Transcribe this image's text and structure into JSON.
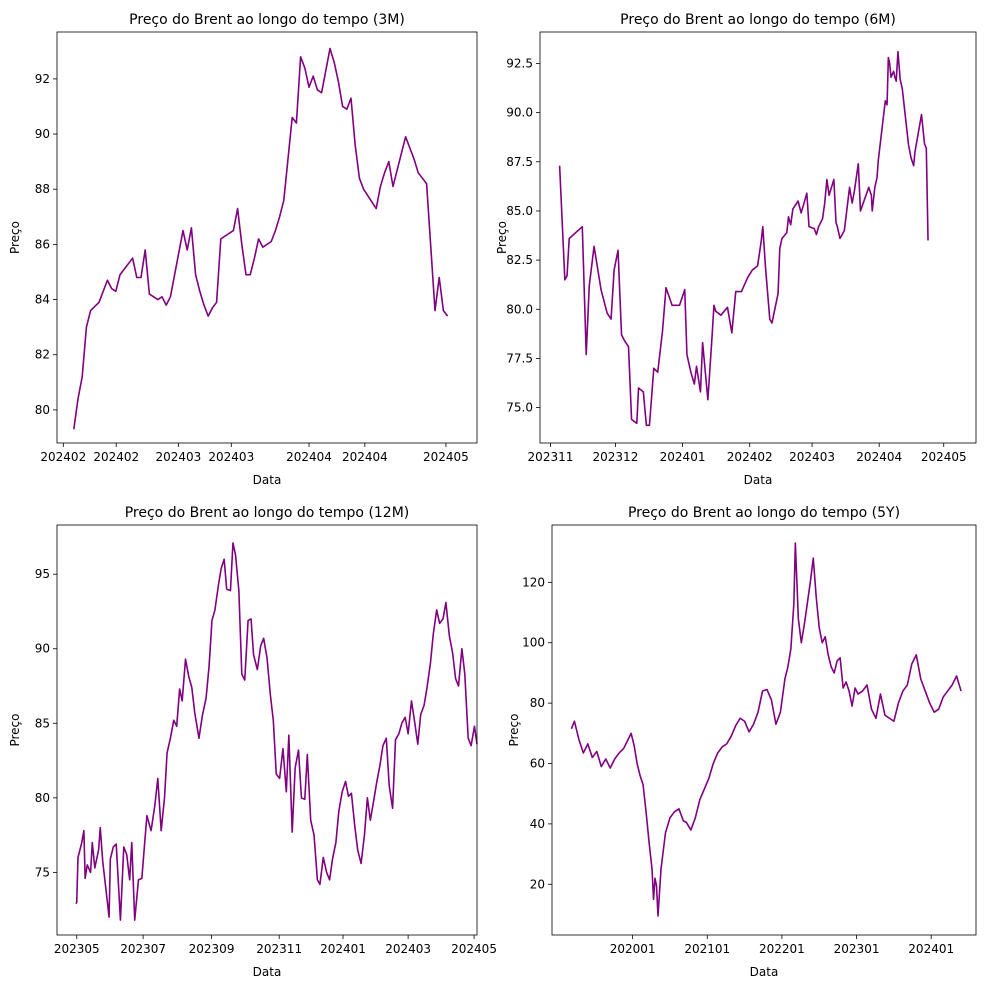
{
  "line_color": "#800080",
  "chart_data": [
    {
      "type": "line",
      "title": "Preço do Brent ao longo do tempo (3M)",
      "xlabel": "Data",
      "ylabel": "Preço",
      "xlim": [
        0,
        100
      ],
      "ylim": [
        78.8,
        93.7
      ],
      "xticks": [
        {
          "pos": 1.5,
          "label": "202402"
        },
        {
          "pos": 14.1,
          "label": "202402"
        },
        {
          "pos": 28.9,
          "label": "202403"
        },
        {
          "pos": 41.5,
          "label": "202403"
        },
        {
          "pos": 60.0,
          "label": "202404"
        },
        {
          "pos": 73.3,
          "label": "202404"
        },
        {
          "pos": 92.6,
          "label": "202405"
        }
      ],
      "yticks": [
        80,
        82,
        84,
        86,
        88,
        90,
        92
      ],
      "grid": false,
      "series": [
        {
          "x": [
            4.0,
            5.0,
            6.0,
            7.0,
            8.0,
            10.0,
            12.0,
            13.0,
            14.0,
            15.0,
            18.0,
            19.0,
            20.0,
            21.0,
            22.0,
            23.0,
            24.0,
            25.0,
            26.0,
            27.0,
            30.0,
            31.0,
            32.0,
            33.0,
            34.0,
            35.0,
            36.0,
            37.0,
            38.0,
            39.0,
            42.0,
            43.0,
            44.0,
            45.0,
            46.0,
            47.0,
            48.0,
            49.0,
            51.0,
            52.0,
            53.0,
            54.0,
            56.0,
            57.0,
            58.0,
            59.0,
            60.0,
            61.0,
            62.0,
            63.0,
            65.0,
            66.0,
            67.0,
            68.0,
            69.0,
            70.0,
            71.0,
            72.0,
            73.0,
            76.0,
            77.0,
            78.0,
            79.0,
            80.0,
            83.0,
            84.0,
            85.0,
            86.0,
            87.0,
            88.0,
            90.0,
            91.0,
            92.0,
            93.0
          ],
          "y": [
            79.3,
            80.4,
            81.2,
            83.0,
            83.6,
            83.9,
            84.7,
            84.4,
            84.3,
            84.9,
            85.5,
            84.8,
            84.8,
            85.8,
            84.2,
            84.1,
            84.0,
            84.1,
            83.8,
            84.1,
            86.5,
            85.8,
            86.6,
            84.9,
            84.3,
            83.8,
            83.4,
            83.7,
            83.9,
            86.2,
            86.5,
            87.3,
            86.0,
            84.9,
            84.9,
            85.5,
            86.2,
            85.9,
            86.1,
            86.5,
            87.0,
            87.6,
            90.6,
            90.4,
            92.8,
            92.4,
            91.7,
            92.1,
            91.6,
            91.5,
            93.1,
            92.6,
            91.9,
            91.0,
            90.9,
            91.3,
            89.6,
            88.4,
            88.0,
            87.3,
            88.1,
            88.6,
            89.0,
            88.1,
            89.9,
            89.5,
            89.1,
            88.6,
            88.4,
            88.2,
            83.6,
            84.8,
            83.6,
            83.4
          ]
        }
      ]
    },
    {
      "type": "line",
      "title": "Preço do Brent ao longo do tempo (6M)",
      "xlabel": "Data",
      "ylabel": "Preço",
      "xlim": [
        0,
        100
      ],
      "ylim": [
        73.2,
        94.1
      ],
      "xticks": [
        {
          "pos": 2.4,
          "label": "202311"
        },
        {
          "pos": 17.3,
          "label": "202312"
        },
        {
          "pos": 32.7,
          "label": "202401"
        },
        {
          "pos": 48.1,
          "label": "202402"
        },
        {
          "pos": 62.4,
          "label": "202403"
        },
        {
          "pos": 77.8,
          "label": "202404"
        },
        {
          "pos": 92.6,
          "label": "202405"
        }
      ],
      "yticks": [
        75.0,
        77.5,
        80.0,
        82.5,
        85.0,
        87.5,
        90.0,
        92.5
      ],
      "yticklabels": [
        "75.0",
        "77.5",
        "80.0",
        "82.5",
        "85.0",
        "87.5",
        "90.0",
        "92.5"
      ],
      "grid": false,
      "series": [
        {
          "x": [
            4.5,
            5.7,
            6.2,
            6.7,
            9.7,
            10.6,
            11.3,
            12.4,
            14.0,
            15.4,
            16.3,
            17.0,
            17.9,
            18.7,
            19.4,
            20.3,
            21.0,
            22.2,
            22.6,
            23.7,
            24.4,
            25.1,
            26.1,
            27.0,
            28.1,
            28.9,
            30.3,
            32.0,
            33.2,
            33.7,
            34.0,
            34.6,
            35.4,
            35.9,
            36.8,
            37.3,
            38.5,
            39.4,
            39.9,
            40.3,
            41.5,
            43.0,
            44.0,
            44.9,
            46.2,
            47.6,
            48.7,
            49.9,
            50.7,
            51.1,
            51.7,
            52.7,
            53.2,
            54.6,
            55.0,
            55.5,
            56.6,
            57.0,
            57.5,
            58.0,
            59.2,
            59.9,
            61.2,
            61.7,
            62.9,
            63.4,
            63.9,
            64.8,
            65.3,
            65.8,
            66.3,
            67.4,
            67.9,
            68.2,
            68.8,
            69.8,
            71.0,
            71.6,
            72.1,
            73.0,
            73.5,
            75.4,
            76.0,
            76.2,
            76.8,
            77.3,
            77.6,
            79.2,
            79.6,
            79.9,
            80.2,
            80.5,
            81.1,
            81.4,
            81.7,
            82.1,
            82.6,
            83.1,
            84.5,
            85.1,
            85.7,
            86.0,
            87.5,
            88.2,
            88.6,
            89.0
          ],
          "y": [
            87.3,
            81.5,
            81.7,
            83.6,
            84.2,
            77.7,
            81.2,
            83.2,
            81.0,
            79.8,
            79.5,
            82.0,
            83.0,
            78.7,
            78.4,
            78.1,
            74.4,
            74.2,
            76.0,
            75.8,
            74.1,
            74.1,
            77.0,
            76.8,
            78.9,
            81.1,
            80.2,
            80.2,
            81.0,
            77.7,
            77.4,
            76.8,
            76.2,
            77.1,
            75.8,
            78.3,
            75.4,
            78.4,
            80.2,
            79.9,
            79.7,
            80.1,
            78.8,
            80.9,
            80.9,
            81.6,
            82.0,
            82.2,
            83.4,
            84.2,
            82.2,
            79.5,
            79.3,
            80.8,
            83.1,
            83.6,
            83.9,
            84.7,
            84.3,
            85.1,
            85.5,
            84.9,
            85.9,
            84.2,
            84.1,
            83.8,
            84.2,
            84.6,
            85.4,
            86.6,
            85.8,
            86.6,
            84.4,
            84.2,
            83.6,
            84.0,
            86.2,
            85.4,
            86.0,
            87.4,
            85.0,
            86.2,
            85.8,
            85.0,
            86.2,
            86.7,
            87.6,
            90.6,
            90.4,
            92.8,
            92.5,
            91.8,
            92.1,
            91.8,
            91.6,
            93.1,
            91.7,
            91.2,
            88.4,
            87.7,
            87.3,
            88.0,
            89.9,
            88.4,
            88.2,
            83.5
          ]
        }
      ]
    },
    {
      "type": "line",
      "title": "Preço do Brent ao longo do tempo (12M)",
      "xlabel": "Data",
      "ylabel": "Preço",
      "xlim": [
        0,
        100
      ],
      "ylim": [
        70.8,
        98.3
      ],
      "xticks": [
        {
          "pos": 4.7,
          "label": "202305"
        },
        {
          "pos": 20.5,
          "label": "202307"
        },
        {
          "pos": 36.8,
          "label": "202309"
        },
        {
          "pos": 52.9,
          "label": "202311"
        },
        {
          "pos": 68.1,
          "label": "202401"
        },
        {
          "pos": 83.6,
          "label": "202403"
        },
        {
          "pos": 99.3,
          "label": "202405"
        }
      ],
      "yticks": [
        75,
        80,
        85,
        90,
        95
      ],
      "grid": false,
      "series": [
        {
          "x": [
            4.5,
            4.7,
            5.0,
            5.9,
            6.4,
            6.7,
            7.2,
            8.0,
            8.4,
            9.0,
            9.9,
            10.3,
            10.9,
            11.6,
            12.4,
            12.7,
            13.4,
            14.1,
            15.1,
            15.9,
            16.6,
            17.3,
            17.8,
            18.5,
            19.4,
            20.2,
            21.4,
            22.4,
            23.3,
            24.0,
            24.8,
            25.6,
            26.2,
            27.0,
            27.8,
            28.5,
            29.2,
            29.8,
            30.6,
            31.4,
            32.1,
            32.8,
            33.8,
            34.6,
            35.5,
            36.2,
            36.9,
            37.6,
            38.4,
            39.1,
            39.8,
            40.4,
            41.3,
            41.9,
            42.5,
            43.3,
            44.0,
            44.7,
            45.5,
            46.2,
            46.8,
            47.7,
            48.5,
            49.2,
            50.0,
            50.8,
            51.5,
            52.2,
            53.0,
            53.8,
            54.6,
            55.2,
            56.0,
            56.7,
            57.5,
            58.2,
            59.0,
            59.6,
            60.4,
            61.2,
            62.0,
            62.6,
            63.4,
            64.2,
            64.9,
            65.6,
            66.4,
            67.1,
            67.9,
            68.7,
            69.4,
            70.1,
            70.9,
            71.6,
            72.4,
            73.2,
            73.9,
            74.6,
            75.4,
            76.1,
            76.9,
            77.6,
            78.4,
            79.1,
            79.9,
            80.6,
            81.4,
            82.1,
            82.9,
            83.6,
            84.4,
            85.2,
            85.9,
            86.6,
            87.4,
            88.1,
            88.9,
            89.6,
            90.4,
            91.1,
            91.9,
            92.6,
            93.4,
            94.2,
            94.9,
            95.6,
            96.4,
            97.1,
            97.9,
            98.6,
            99.4,
            100.0
          ],
          "y": [
            72.9,
            73.0,
            76.0,
            77.0,
            77.8,
            74.6,
            75.5,
            75.0,
            77.0,
            75.3,
            76.5,
            78.0,
            75.7,
            74.0,
            72.0,
            75.9,
            76.7,
            76.9,
            71.8,
            76.7,
            76.2,
            74.5,
            77.0,
            71.8,
            74.5,
            74.6,
            78.8,
            77.8,
            79.5,
            81.3,
            77.8,
            80.0,
            83.0,
            84.0,
            85.2,
            84.8,
            87.3,
            86.5,
            89.3,
            88.1,
            87.4,
            85.7,
            84.0,
            85.5,
            86.7,
            88.8,
            91.9,
            92.6,
            94.2,
            95.4,
            96.0,
            94.0,
            93.9,
            97.1,
            96.3,
            93.9,
            88.3,
            87.9,
            91.9,
            92.0,
            89.6,
            88.6,
            90.2,
            90.7,
            89.4,
            86.9,
            85.2,
            81.6,
            81.3,
            83.3,
            80.4,
            84.2,
            77.7,
            82.0,
            83.2,
            80.0,
            79.9,
            82.9,
            78.5,
            77.5,
            74.5,
            74.2,
            76.0,
            75.0,
            74.5,
            75.9,
            77.0,
            79.1,
            80.4,
            81.1,
            80.1,
            80.3,
            78.1,
            76.5,
            75.6,
            77.5,
            80.0,
            78.5,
            79.8,
            81.0,
            82.2,
            83.5,
            84.0,
            80.8,
            79.3,
            83.9,
            84.3,
            85.0,
            85.4,
            84.3,
            86.5,
            85.0,
            83.6,
            85.6,
            86.2,
            87.4,
            89.0,
            91.0,
            92.6,
            91.7,
            92.0,
            93.1,
            90.9,
            89.7,
            88.0,
            87.5,
            90.0,
            88.3,
            84.0,
            83.5,
            84.8,
            83.6
          ]
        }
      ]
    },
    {
      "type": "line",
      "title": "Preço do Brent ao longo do tempo (5Y)",
      "xlabel": "Data",
      "ylabel": "Preço",
      "xlim": [
        2018.92,
        2024.6
      ],
      "ylim": [
        3.2,
        139.0
      ],
      "xticks": [
        {
          "pos": 2020.0,
          "label": "202001"
        },
        {
          "pos": 2021.0,
          "label": "202101"
        },
        {
          "pos": 2022.0,
          "label": "202201"
        },
        {
          "pos": 2023.0,
          "label": "202301"
        },
        {
          "pos": 2024.0,
          "label": "202401"
        }
      ],
      "yticks": [
        20,
        40,
        60,
        80,
        100,
        120
      ],
      "grid": false,
      "series": [
        {
          "x": [
            2019.18,
            2019.22,
            2019.28,
            2019.34,
            2019.4,
            2019.46,
            2019.52,
            2019.58,
            2019.64,
            2019.7,
            2019.76,
            2019.82,
            2019.88,
            2019.94,
            2019.98,
            2020.02,
            2020.06,
            2020.1,
            2020.14,
            2020.18,
            2020.22,
            2020.26,
            2020.28,
            2020.3,
            2020.32,
            2020.34,
            2020.38,
            2020.44,
            2020.5,
            2020.56,
            2020.62,
            2020.68,
            2020.72,
            2020.78,
            2020.84,
            2020.9,
            2020.96,
            2021.02,
            2021.08,
            2021.14,
            2021.2,
            2021.26,
            2021.32,
            2021.38,
            2021.44,
            2021.5,
            2021.56,
            2021.62,
            2021.68,
            2021.74,
            2021.8,
            2021.86,
            2021.92,
            2021.98,
            2022.04,
            2022.08,
            2022.12,
            2022.16,
            2022.18,
            2022.22,
            2022.26,
            2022.3,
            2022.34,
            2022.38,
            2022.42,
            2022.46,
            2022.5,
            2022.54,
            2022.58,
            2022.62,
            2022.66,
            2022.7,
            2022.74,
            2022.78,
            2022.82,
            2022.86,
            2022.9,
            2022.94,
            2022.98,
            2023.02,
            2023.08,
            2023.14,
            2023.2,
            2023.26,
            2023.32,
            2023.38,
            2023.44,
            2023.5,
            2023.56,
            2023.62,
            2023.68,
            2023.74,
            2023.8,
            2023.86,
            2023.92,
            2023.98,
            2024.04,
            2024.1,
            2024.16,
            2024.22,
            2024.28,
            2024.34,
            2024.4
          ],
          "y": [
            71.5,
            74.0,
            68.0,
            63.5,
            66.5,
            62.0,
            64.0,
            59.0,
            61.5,
            58.5,
            61.5,
            63.5,
            65.0,
            68.0,
            70.0,
            66.0,
            60.0,
            56.0,
            53.0,
            44.0,
            34.0,
            25.0,
            15.0,
            22.0,
            19.5,
            9.5,
            25.0,
            37.0,
            42.0,
            44.0,
            45.0,
            41.0,
            40.5,
            38.0,
            42.0,
            48.0,
            51.5,
            55.0,
            60.0,
            63.5,
            65.5,
            66.5,
            69.0,
            72.5,
            75.0,
            74.0,
            70.5,
            73.0,
            77.0,
            84.0,
            84.5,
            81.0,
            73.0,
            77.0,
            88.0,
            92.0,
            98.0,
            113.0,
            133.0,
            108.0,
            100.0,
            106.0,
            113.0,
            120.0,
            128.0,
            115.0,
            105.0,
            100.0,
            102.0,
            96.0,
            92.0,
            90.0,
            94.0,
            95.0,
            85.0,
            87.0,
            84.0,
            79.0,
            85.0,
            83.0,
            84.0,
            86.0,
            78.0,
            75.0,
            83.0,
            76.0,
            75.0,
            74.0,
            80.0,
            84.0,
            86.0,
            93.0,
            96.0,
            88.0,
            84.0,
            80.0,
            77.0,
            78.0,
            82.0,
            84.0,
            86.0,
            89.0,
            84.0
          ]
        }
      ]
    }
  ]
}
